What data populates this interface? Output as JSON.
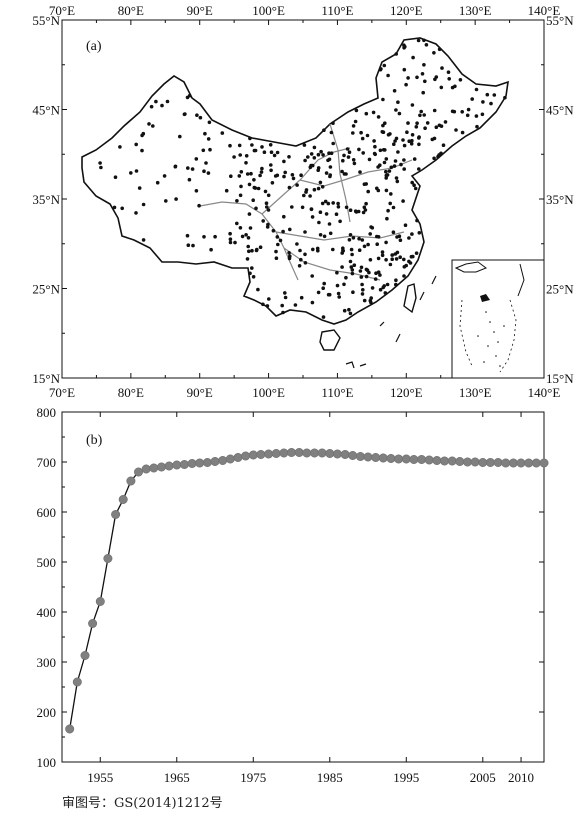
{
  "map": {
    "panel_label": "(a)",
    "lon_ticks": [
      "70°E",
      "80°E",
      "90°E",
      "100°E",
      "110°E",
      "120°E",
      "130°E",
      "140°E"
    ],
    "lat_ticks": [
      "55°N",
      "45°N",
      "35°N",
      "25°N",
      "15°N"
    ],
    "lon_range": [
      70,
      140
    ],
    "lat_range": [
      15,
      55
    ],
    "station_color": "#111111",
    "border_color": "#111111",
    "river_color": "#888888",
    "inset": "South China Sea islands inset (lower right)"
  },
  "chart_data": {
    "type": "line",
    "panel_label": "(b)",
    "title": "",
    "xlabel": "",
    "ylabel": "",
    "xlim": [
      1950,
      2013
    ],
    "ylim": [
      100,
      800
    ],
    "x_ticks": [
      "1955",
      "1965",
      "1975",
      "1985",
      "1995",
      "2005",
      "2010"
    ],
    "y_ticks": [
      "100",
      "200",
      "300",
      "400",
      "500",
      "600",
      "700",
      "800"
    ],
    "marker_color": "#808080",
    "line_color": "#111111",
    "series": [
      {
        "x": [
          1951,
          1952,
          1953,
          1954,
          1955,
          1956,
          1957,
          1958,
          1959,
          1960,
          1961,
          1962,
          1963,
          1964,
          1965,
          1966,
          1967,
          1968,
          1969,
          1970,
          1971,
          1972,
          1973,
          1974,
          1975,
          1976,
          1977,
          1978,
          1979,
          1980,
          1981,
          1982,
          1983,
          1984,
          1985,
          1986,
          1987,
          1988,
          1989,
          1990,
          1991,
          1992,
          1993,
          1994,
          1995,
          1996,
          1997,
          1998,
          1999,
          2000,
          2001,
          2002,
          2003,
          2004,
          2005,
          2006,
          2007,
          2008,
          2009,
          2010,
          2011,
          2012,
          2013
        ],
        "values": [
          166,
          260,
          313,
          377,
          421,
          507,
          595,
          625,
          662,
          680,
          686,
          688,
          690,
          692,
          694,
          695,
          697,
          698,
          699,
          701,
          703,
          706,
          709,
          712,
          714,
          715,
          716,
          717,
          718,
          719,
          719,
          718,
          718,
          718,
          717,
          716,
          715,
          713,
          711,
          710,
          709,
          708,
          707,
          706,
          706,
          705,
          705,
          704,
          703,
          702,
          702,
          701,
          700,
          700,
          699,
          699,
          699,
          698,
          698,
          698,
          698,
          698,
          698
        ]
      }
    ]
  },
  "footer": {
    "approval_number": "审图号：GS(2014)1212号"
  }
}
